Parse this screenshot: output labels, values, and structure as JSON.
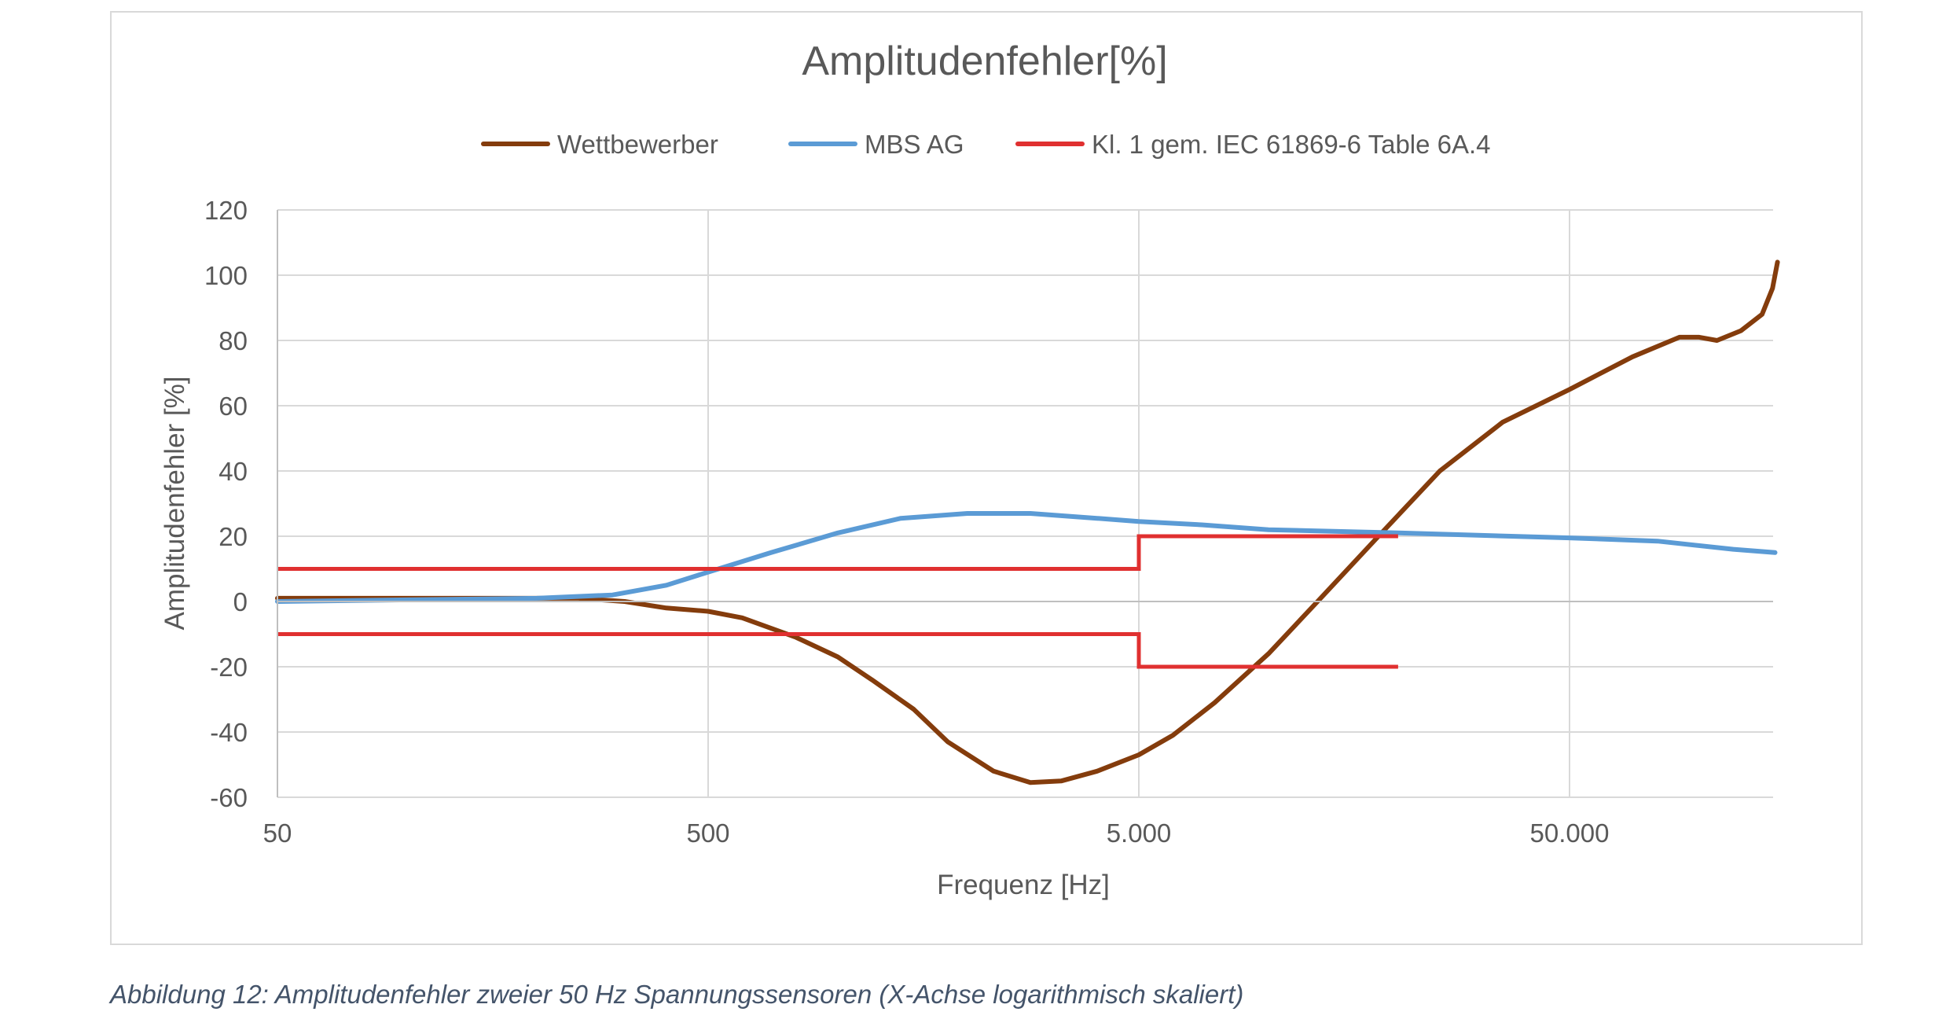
{
  "chart_data": {
    "type": "line",
    "title": "Amplitudenfehler[%]",
    "xlabel": "Frequenz [Hz]",
    "ylabel": "Amplitudenfehler [%]",
    "x_scale": "log",
    "xlim": [
      50,
      150000
    ],
    "ylim": [
      -60,
      120
    ],
    "x_ticks": [
      {
        "value": 50,
        "label": "50"
      },
      {
        "value": 500,
        "label": "500"
      },
      {
        "value": 5000,
        "label": "5.000"
      },
      {
        "value": 50000,
        "label": "50.000"
      }
    ],
    "y_ticks": [
      {
        "value": 120,
        "label": "120"
      },
      {
        "value": 100,
        "label": "100"
      },
      {
        "value": 80,
        "label": "80"
      },
      {
        "value": 60,
        "label": "60"
      },
      {
        "value": 40,
        "label": "40"
      },
      {
        "value": 20,
        "label": "20"
      },
      {
        "value": 0,
        "label": "0"
      },
      {
        "value": -20,
        "label": "-20"
      },
      {
        "value": -40,
        "label": "-40"
      },
      {
        "value": -60,
        "label": "-60"
      }
    ],
    "grid": "horizontal and vertical",
    "legend_position": "top",
    "series": [
      {
        "name": "Wettbewerber",
        "color": "#843c0c",
        "points": [
          [
            50,
            1
          ],
          [
            100,
            1
          ],
          [
            150,
            1
          ],
          [
            250,
            1
          ],
          [
            320,
            0
          ],
          [
            400,
            -2
          ],
          [
            500,
            -3
          ],
          [
            600,
            -5
          ],
          [
            800,
            -11
          ],
          [
            1000,
            -17
          ],
          [
            1200,
            -24
          ],
          [
            1500,
            -33
          ],
          [
            1800,
            -43
          ],
          [
            2300,
            -52
          ],
          [
            2800,
            -55.5
          ],
          [
            3300,
            -55
          ],
          [
            4000,
            -52
          ],
          [
            5000,
            -47
          ],
          [
            6000,
            -41
          ],
          [
            7500,
            -31
          ],
          [
            10000,
            -16
          ],
          [
            13000,
            0
          ],
          [
            18000,
            20
          ],
          [
            25000,
            40
          ],
          [
            35000,
            55
          ],
          [
            50000,
            65
          ],
          [
            70000,
            75
          ],
          [
            90000,
            81
          ],
          [
            100000,
            81
          ],
          [
            110000,
            80
          ],
          [
            125000,
            83
          ],
          [
            140000,
            88
          ],
          [
            148000,
            96
          ],
          [
            152000,
            104
          ]
        ]
      },
      {
        "name": "MBS AG",
        "color": "#5b9bd5",
        "points": [
          [
            50,
            0
          ],
          [
            100,
            0.5
          ],
          [
            200,
            1
          ],
          [
            300,
            2
          ],
          [
            400,
            5
          ],
          [
            500,
            9
          ],
          [
            700,
            15
          ],
          [
            1000,
            21
          ],
          [
            1400,
            25.5
          ],
          [
            2000,
            27
          ],
          [
            2800,
            27
          ],
          [
            4000,
            25.5
          ],
          [
            5000,
            24.5
          ],
          [
            7000,
            23.5
          ],
          [
            10000,
            22
          ],
          [
            20000,
            21
          ],
          [
            50000,
            19.5
          ],
          [
            80000,
            18.5
          ],
          [
            120000,
            16
          ],
          [
            150000,
            15
          ]
        ]
      },
      {
        "name": "Kl. 1 gem. IEC 61869-6 Table 6A.4",
        "color": "#e03030",
        "segments": [
          [
            [
              50,
              10
            ],
            [
              5000,
              10
            ],
            [
              5000,
              20
            ],
            [
              20000,
              20
            ]
          ],
          [
            [
              50,
              -10
            ],
            [
              5000,
              -10
            ],
            [
              5000,
              -20
            ],
            [
              20000,
              -20
            ]
          ]
        ]
      }
    ]
  },
  "caption": "Abbildung 12: Amplitudenfehler zweier 50 Hz Spannungssensoren (X-Achse logarithmisch skaliert)"
}
